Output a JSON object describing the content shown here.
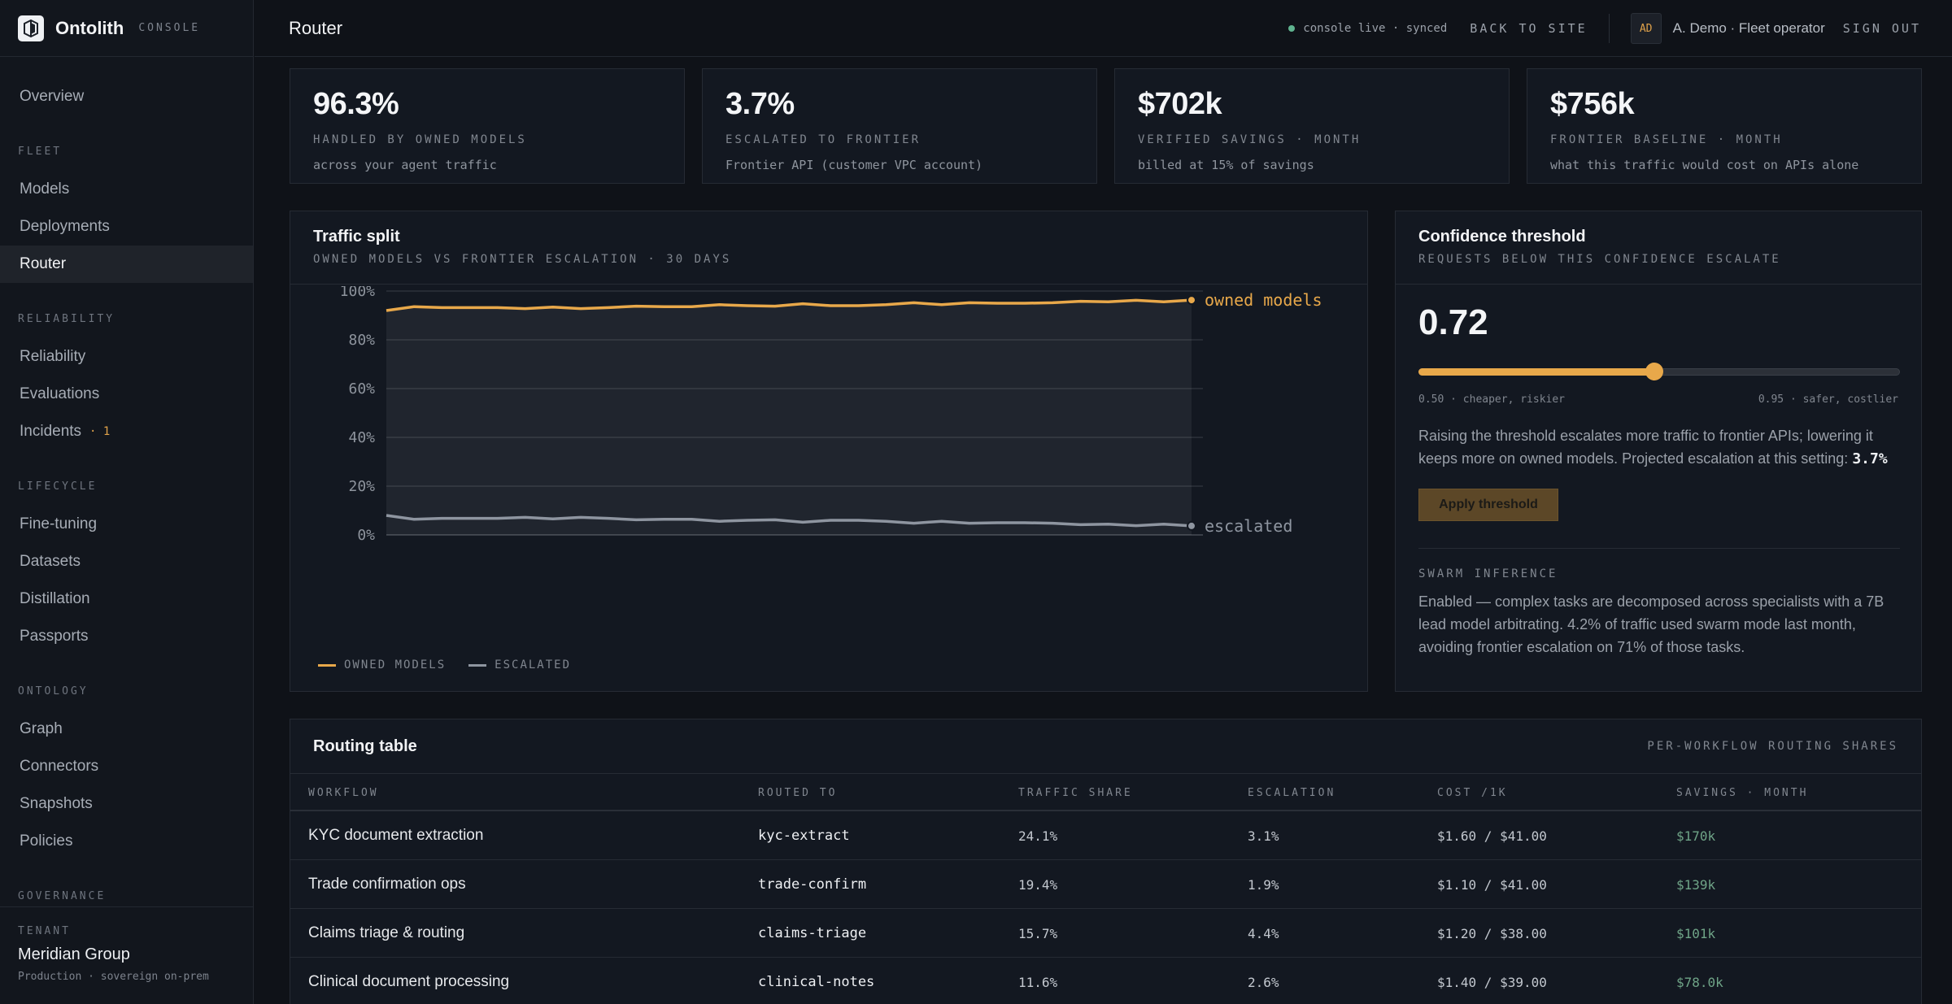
{
  "brand": {
    "name": "Ontolith",
    "tag": "CONSOLE"
  },
  "sidebar": {
    "top_item": "Overview",
    "sections": [
      {
        "label": "FLEET",
        "items": [
          "Models",
          "Deployments",
          "Router"
        ]
      },
      {
        "label": "RELIABILITY",
        "items": [
          "Reliability",
          "Evaluations",
          "Incidents"
        ]
      },
      {
        "label": "LIFECYCLE",
        "items": [
          "Fine-tuning",
          "Datasets",
          "Distillation",
          "Passports"
        ]
      },
      {
        "label": "ONTOLOGY",
        "items": [
          "Graph",
          "Connectors",
          "Snapshots",
          "Policies"
        ]
      },
      {
        "label": "GOVERNANCE",
        "items": []
      }
    ],
    "active": "Router",
    "incidents_badge": "· 1"
  },
  "tenant": {
    "label": "TENANT",
    "name": "Meridian Group",
    "sub": "Production · sovereign on-prem"
  },
  "header": {
    "title": "Router",
    "live_status": "console live · synced",
    "back_link": "BACK TO SITE",
    "avatar_initials": "AD",
    "user": "A. Demo · Fleet operator",
    "sign_out": "SIGN OUT"
  },
  "stats": [
    {
      "value": "96.3%",
      "label": "HANDLED BY OWNED MODELS",
      "sub": "across your agent traffic"
    },
    {
      "value": "3.7%",
      "label": "ESCALATED TO FRONTIER",
      "sub": "Frontier API (customer VPC account)"
    },
    {
      "value": "$702k",
      "label": "VERIFIED SAVINGS · MONTH",
      "sub": "billed at 15% of savings"
    },
    {
      "value": "$756k",
      "label": "FRONTIER BASELINE · MONTH",
      "sub": "what this traffic would cost on APIs alone"
    }
  ],
  "traffic_panel": {
    "title": "Traffic split",
    "subtitle": "OWNED MODELS VS FRONTIER ESCALATION · 30 DAYS",
    "legend_owned": "OWNED MODELS",
    "legend_escalated": "ESCALATED"
  },
  "chart_data": {
    "type": "line",
    "x": [
      1,
      2,
      3,
      4,
      5,
      6,
      7,
      8,
      9,
      10,
      11,
      12,
      13,
      14,
      15,
      16,
      17,
      18,
      19,
      20,
      21,
      22,
      23,
      24,
      25,
      26,
      27,
      28,
      29,
      30
    ],
    "yticks": [
      "0%",
      "20%",
      "40%",
      "60%",
      "80%",
      "100%"
    ],
    "ylim": [
      0,
      100
    ],
    "grid": true,
    "series": [
      {
        "name": "owned models",
        "color": "#e8a84a",
        "values": [
          92.0,
          93.6,
          93.2,
          93.2,
          93.2,
          92.8,
          93.4,
          92.8,
          93.2,
          93.8,
          93.6,
          93.6,
          94.4,
          94.0,
          93.8,
          94.8,
          94.0,
          94.0,
          94.4,
          95.2,
          94.4,
          95.2,
          95.0,
          95.0,
          95.2,
          95.8,
          95.6,
          96.2,
          95.6,
          96.3
        ]
      },
      {
        "name": "escalated",
        "color": "#8e95a0",
        "values": [
          8.0,
          6.4,
          6.8,
          6.8,
          6.8,
          7.2,
          6.6,
          7.2,
          6.8,
          6.2,
          6.4,
          6.4,
          5.6,
          6.0,
          6.2,
          5.2,
          6.0,
          6.0,
          5.6,
          4.8,
          5.6,
          4.8,
          5.0,
          5.0,
          4.8,
          4.2,
          4.4,
          3.8,
          4.4,
          3.7
        ]
      }
    ]
  },
  "confidence": {
    "title": "Confidence threshold",
    "subtitle": "REQUESTS BELOW THIS CONFIDENCE ESCALATE",
    "value": "0.72",
    "slider_fraction": 0.49,
    "min_label": "0.50 · cheaper, riskier",
    "max_label": "0.95 · safer, costlier",
    "desc": "Raising the threshold escalates more traffic to frontier APIs; lowering it keeps more on owned models. Projected escalation at this setting:",
    "projected": "3.7%",
    "apply_label": "Apply threshold",
    "swarm_label": "SWARM INFERENCE",
    "swarm_text": "Enabled — complex tasks are decomposed across specialists with a 7B lead model arbitrating. 4.2% of traffic used swarm mode last month, avoiding frontier escalation on 71% of those tasks."
  },
  "routing_table": {
    "title": "Routing table",
    "hint": "PER-WORKFLOW ROUTING SHARES",
    "columns": [
      "WORKFLOW",
      "ROUTED TO",
      "TRAFFIC SHARE",
      "ESCALATION",
      "COST /1K",
      "SAVINGS · MONTH"
    ],
    "rows": [
      [
        "KYC document extraction",
        "kyc-extract",
        "24.1%",
        "3.1%",
        "$1.60 / $41.00",
        "$170k"
      ],
      [
        "Trade confirmation ops",
        "trade-confirm",
        "19.4%",
        "1.9%",
        "$1.10 / $41.00",
        "$139k"
      ],
      [
        "Claims triage & routing",
        "claims-triage",
        "15.7%",
        "4.4%",
        "$1.20 / $38.00",
        "$101k"
      ],
      [
        "Clinical document processing",
        "clinical-notes",
        "11.6%",
        "2.6%",
        "$1.40 / $39.00",
        "$78.0k"
      ]
    ]
  }
}
